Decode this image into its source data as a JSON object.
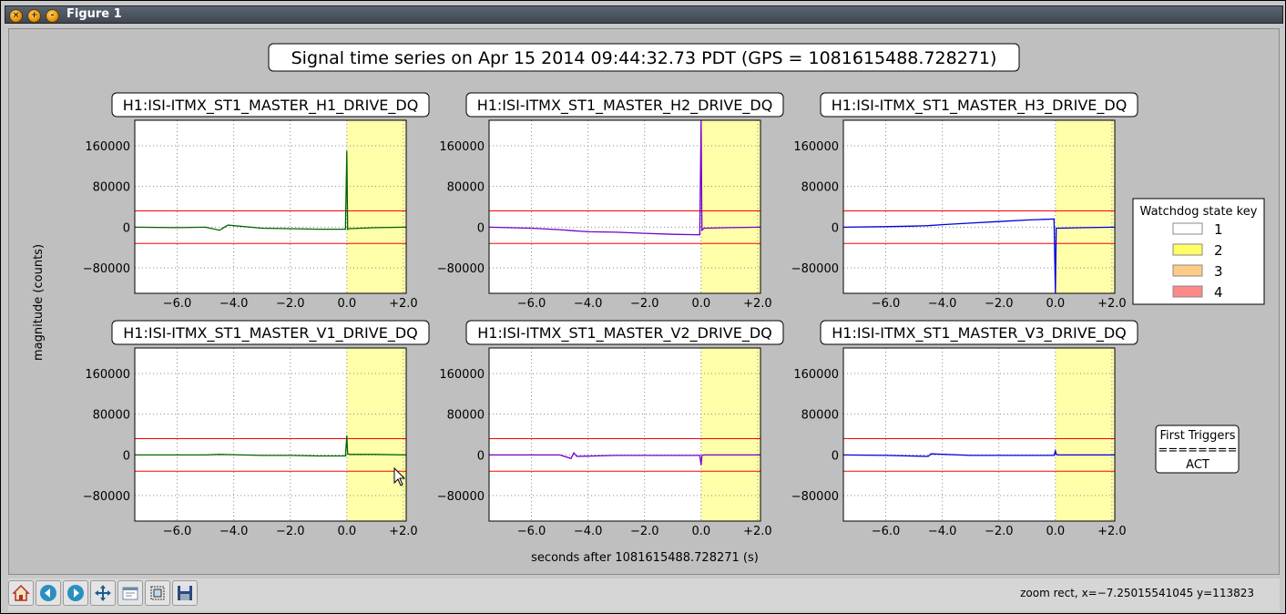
{
  "window": {
    "title": "Figure 1"
  },
  "figure": {
    "suptitle": "Signal time series on Apr 15 2014 09:44:32.73 PDT (GPS = 1081615488.728271)",
    "ylabel": "magnitude (counts)",
    "xlabel": "seconds after 1081615488.728271 (s)"
  },
  "legend": {
    "title": "Watchdog state key",
    "items": [
      {
        "label": "1",
        "color": "#ffffff"
      },
      {
        "label": "2",
        "color": "#ffff66"
      },
      {
        "label": "3",
        "color": "#ffcc88"
      },
      {
        "label": "4",
        "color": "#ff8888"
      }
    ]
  },
  "triggers": {
    "title": "First Triggers",
    "separator": "========",
    "value": "ACT"
  },
  "toolbar": {
    "buttons": [
      "home-icon",
      "back-icon",
      "forward-icon",
      "pan-icon",
      "configure-subplots-icon",
      "zoom-icon",
      "save-icon"
    ],
    "status": "zoom rect, x=−7.25015541045 y=113823"
  },
  "chart_data": {
    "type": "line",
    "xlim": [
      -7.5,
      2.1
    ],
    "ylim": [
      -130000,
      210000
    ],
    "xticks": [
      "−6.0",
      "−4.0",
      "−2.0",
      "0.0",
      "+2.0"
    ],
    "xtick_values": [
      -6,
      -4,
      -2,
      0,
      2
    ],
    "yticks": [
      "160000",
      "80000",
      "0",
      "−80000"
    ],
    "ytick_values": [
      160000,
      80000,
      0,
      -80000
    ],
    "threshold_lines": [
      32000,
      -32000
    ],
    "threshold_color": "#ff0000",
    "shaded_region": {
      "from": 0.0,
      "to": 2.1,
      "state": "2",
      "color": "#ffffaa"
    },
    "grid": true,
    "series": [
      {
        "name": "H1:ISI-ITMX_ST1_MASTER_H1_DRIVE_DQ",
        "color": "#006400",
        "x": [
          -7.5,
          -6,
          -5,
          -4.5,
          -4.2,
          -3,
          -2,
          -1,
          -0.05,
          0,
          0.03,
          0.1,
          1,
          2.1
        ],
        "y": [
          0,
          -1000,
          0,
          -6000,
          4000,
          -2000,
          -3000,
          -4000,
          -4000,
          150000,
          -4000,
          -3000,
          -1000,
          0
        ]
      },
      {
        "name": "H1:ISI-ITMX_ST1_MASTER_H2_DRIVE_DQ",
        "color": "#7400c8",
        "x": [
          -7.5,
          -6,
          -5,
          -4.5,
          -4,
          -3,
          -2,
          -1,
          -0.05,
          0,
          0.03,
          0.1,
          1,
          2.1
        ],
        "y": [
          0,
          -2000,
          -5000,
          -7000,
          -9000,
          -10000,
          -12000,
          -14000,
          -15000,
          210000,
          -6000,
          -2000,
          -1000,
          0
        ]
      },
      {
        "name": "H1:ISI-ITMX_ST1_MASTER_H3_DRIVE_DQ",
        "color": "#0000e0",
        "x": [
          -7.5,
          -6,
          -5,
          -4.5,
          -4,
          -3,
          -2,
          -1,
          -0.05,
          0,
          0.03,
          0.1,
          1,
          2.1
        ],
        "y": [
          0,
          1000,
          2000,
          3000,
          5000,
          8000,
          11000,
          14000,
          16000,
          -130000,
          -2000,
          -2000,
          -1000,
          0
        ]
      },
      {
        "name": "H1:ISI-ITMX_ST1_MASTER_V1_DRIVE_DQ",
        "color": "#006400",
        "x": [
          -7.5,
          -5,
          -4.5,
          -3,
          -2,
          -1,
          -0.05,
          0,
          0.03,
          0.1,
          1,
          2.1
        ],
        "y": [
          0,
          0,
          1000,
          -1000,
          -1000,
          -2000,
          -2000,
          38000,
          2000,
          1000,
          1000,
          0
        ]
      },
      {
        "name": "H1:ISI-ITMX_ST1_MASTER_V2_DRIVE_DQ",
        "color": "#7400c8",
        "x": [
          -7.5,
          -5,
          -4.6,
          -4.5,
          -4.4,
          -3,
          -2,
          -1,
          -0.05,
          0,
          0.03,
          0.1,
          1,
          2.1
        ],
        "y": [
          0,
          0,
          -7000,
          4000,
          -3000,
          -1000,
          -1000,
          -1000,
          -1000,
          -20000,
          -1000,
          0,
          0,
          0
        ]
      },
      {
        "name": "H1:ISI-ITMX_ST1_MASTER_V3_DRIVE_DQ",
        "color": "#0000e0",
        "x": [
          -7.5,
          -6,
          -4.5,
          -4.4,
          -3,
          -2,
          -1,
          -0.05,
          0,
          0.03,
          0.1,
          1,
          2.1
        ],
        "y": [
          0,
          -1000,
          -3000,
          2000,
          -1000,
          -1000,
          -1000,
          -1000,
          8000,
          1000,
          0,
          0,
          0
        ]
      }
    ]
  }
}
